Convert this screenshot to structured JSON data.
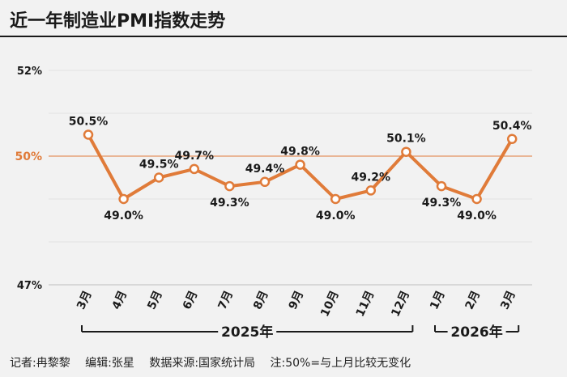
{
  "title": "近一年制造业PMI指数走势",
  "footer": {
    "reporter": "记者:冉黎黎",
    "editor": "编辑:张星",
    "source": "数据来源:国家统计局",
    "note": "注:50%=与上月比较无变化"
  },
  "colors": {
    "series": "#e07b39",
    "reference": "#e07b39",
    "text": "#1a1a1a",
    "grid": "#e2e2e2",
    "background": "#f2f2f2"
  },
  "chart_data": {
    "type": "line",
    "title": "近一年制造业PMI指数走势",
    "categories": [
      "3月",
      "4月",
      "5月",
      "6月",
      "7月",
      "8月",
      "9月",
      "10月",
      "11月",
      "12月",
      "1月",
      "2月",
      "3月"
    ],
    "series": [
      {
        "values": [
          50.5,
          49.0,
          49.5,
          49.7,
          49.3,
          49.4,
          49.8,
          49.0,
          49.2,
          50.1,
          49.3,
          49.0,
          50.4
        ],
        "labels": [
          "50.5%",
          "49.0%",
          "49.5%",
          "49.7%",
          "49.3%",
          "49.4%",
          "49.8%",
          "49.0%",
          "49.2%",
          "50.1%",
          "49.3%",
          "49.0%",
          "50.4%"
        ]
      }
    ],
    "ylim": [
      47,
      52
    ],
    "yticks": [
      {
        "value": 52,
        "label": "52%"
      },
      {
        "value": 50,
        "label": "50%"
      },
      {
        "value": 47,
        "label": "47%"
      }
    ],
    "reference_line": 50,
    "year_groups": [
      {
        "label": "2025年",
        "start": 0,
        "end": 9
      },
      {
        "label": "2026年",
        "start": 10,
        "end": 12
      }
    ],
    "grid": true
  }
}
